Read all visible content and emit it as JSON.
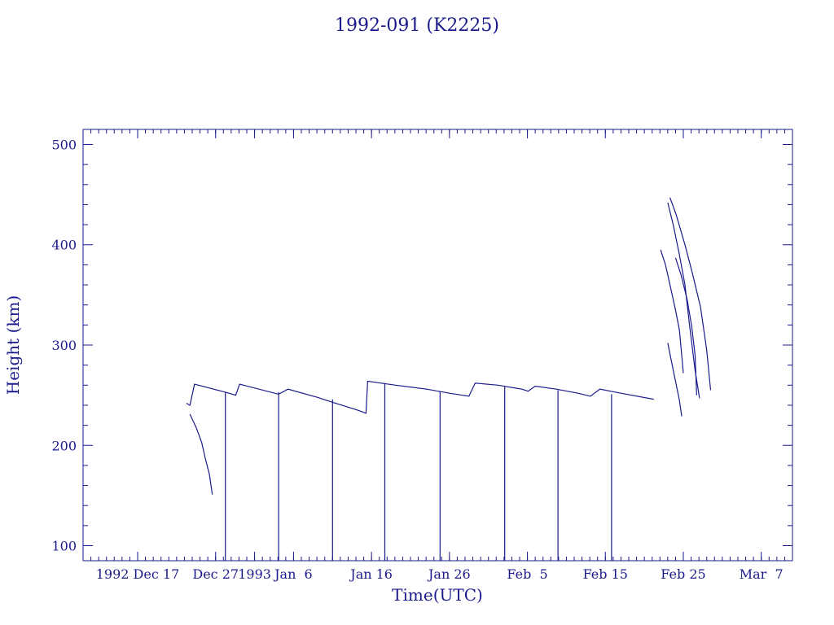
{
  "colors": {
    "ink": "#1a1a8c",
    "background": "#ffffff"
  },
  "chart_data": {
    "type": "line",
    "title": "1992-091 (K2225)",
    "xlabel": "Time(UTC)",
    "ylabel": "Height (km)",
    "grid": false,
    "legend": "none",
    "xlim": [
      "1992-12-10",
      "1993-03-11"
    ],
    "ylim": [
      85,
      515
    ],
    "x_tick_labels": [
      {
        "t": "1992-12-17",
        "label": "1992 Dec 17"
      },
      {
        "t": "1992-12-27",
        "label": "Dec 27"
      },
      {
        "t": "1993-01-01",
        "label": "1993"
      },
      {
        "t": "1993-01-06",
        "label": "Jan  6"
      },
      {
        "t": "1993-01-16",
        "label": "Jan 16"
      },
      {
        "t": "1993-01-26",
        "label": "Jan 26"
      },
      {
        "t": "1993-02-05",
        "label": "Feb  5"
      },
      {
        "t": "1993-02-15",
        "label": "Feb 15"
      },
      {
        "t": "1993-02-25",
        "label": "Feb 25"
      },
      {
        "t": "1993-03-07",
        "label": "Mar  7"
      }
    ],
    "y_ticks": [
      100,
      200,
      300,
      400,
      500
    ],
    "series": [
      {
        "points": [
          [
            "1992-12-23 06:00",
            242
          ],
          [
            "1992-12-23 17:00",
            240
          ],
          [
            "1992-12-24 07:00",
            261
          ],
          [
            "1992-12-28 06:00",
            253
          ],
          [
            "1992-12-29 14:00",
            250
          ],
          [
            "1992-12-30 02:00",
            261
          ],
          [
            "1993-01-04 02:00",
            251
          ],
          [
            "1993-01-05 07:00",
            256
          ],
          [
            "1993-01-09 00:00",
            248
          ],
          [
            "1993-01-11 00:00",
            243
          ],
          [
            "1993-01-14 06:00",
            235
          ],
          [
            "1993-01-15 07:00",
            232
          ],
          [
            "1993-01-15 12:00",
            264
          ],
          [
            "1993-01-19 02:00",
            260
          ],
          [
            "1993-01-23 02:00",
            256
          ],
          [
            "1993-01-26 00:00",
            252
          ],
          [
            "1993-01-28 12:00",
            249
          ],
          [
            "1993-01-29 07:00",
            262
          ],
          [
            "1993-02-01 05:00",
            260
          ],
          [
            "1993-02-04 07:00",
            256
          ],
          [
            "1993-02-05 02:00",
            254
          ],
          [
            "1993-02-06 00:00",
            259
          ],
          [
            "1993-02-08 17:00",
            256
          ],
          [
            "1993-02-11 12:00",
            252
          ],
          [
            "1993-02-13 02:00",
            249
          ],
          [
            "1993-02-14 07:00",
            256
          ],
          [
            "1993-02-17 00:00",
            252
          ],
          [
            "1993-02-21 05:00",
            246
          ]
        ]
      },
      {
        "points": [
          [
            "1992-12-23 17:00",
            231
          ],
          [
            "1992-12-24 12:00",
            218
          ],
          [
            "1992-12-25 05:00",
            203
          ],
          [
            "1992-12-25 17:00",
            186
          ],
          [
            "1992-12-26 05:00",
            171
          ],
          [
            "1992-12-26 14:00",
            151
          ]
        ]
      },
      {
        "points": [
          [
            "1992-12-28 06:00",
            253
          ],
          [
            "1992-12-28 06:00",
            85
          ]
        ]
      },
      {
        "points": [
          [
            "1993-01-04 02:00",
            253
          ],
          [
            "1993-01-04 02:00",
            85
          ]
        ]
      },
      {
        "points": [
          [
            "1993-01-11 00:00",
            246
          ],
          [
            "1993-01-11 00:00",
            85
          ]
        ]
      },
      {
        "points": [
          [
            "1993-01-17 17:00",
            262
          ],
          [
            "1993-01-17 17:00",
            85
          ]
        ]
      },
      {
        "points": [
          [
            "1993-01-24 19:00",
            254
          ],
          [
            "1993-01-24 19:00",
            85
          ]
        ]
      },
      {
        "points": [
          [
            "1993-02-02 02:00",
            259
          ],
          [
            "1993-02-02 02:00",
            85
          ]
        ]
      },
      {
        "points": [
          [
            "1993-02-08 22:00",
            255
          ],
          [
            "1993-02-08 22:00",
            85
          ]
        ]
      },
      {
        "points": [
          [
            "1993-02-15 19:00",
            251
          ],
          [
            "1993-02-15 19:00",
            85
          ]
        ]
      },
      {
        "points": [
          [
            "1993-02-22 02:00",
            395
          ],
          [
            "1993-02-22 17:00",
            380
          ],
          [
            "1993-02-23 07:00",
            360
          ],
          [
            "1993-02-24 00:00",
            335
          ],
          [
            "1993-02-24 12:00",
            315
          ],
          [
            "1993-02-25 00:00",
            272
          ]
        ]
      },
      {
        "points": [
          [
            "1993-02-23 00:00",
            442
          ],
          [
            "1993-02-23 17:00",
            420
          ],
          [
            "1993-02-24 12:00",
            390
          ],
          [
            "1993-02-25 05:00",
            360
          ],
          [
            "1993-02-25 19:00",
            320
          ],
          [
            "1993-02-26 12:00",
            275
          ],
          [
            "1993-02-27 02:00",
            247
          ]
        ]
      },
      {
        "points": [
          [
            "1993-02-23 07:00",
            447
          ],
          [
            "1993-02-24 02:00",
            430
          ],
          [
            "1993-02-25 05:00",
            400
          ],
          [
            "1993-02-26 05:00",
            370
          ],
          [
            "1993-02-27 05:00",
            338
          ],
          [
            "1993-02-28 00:00",
            295
          ],
          [
            "1993-02-28 12:00",
            255
          ]
        ]
      },
      {
        "points": [
          [
            "1993-02-24 00:00",
            387
          ],
          [
            "1993-02-24 17:00",
            370
          ],
          [
            "1993-02-25 12:00",
            345
          ],
          [
            "1993-02-26 02:00",
            318
          ],
          [
            "1993-02-26 12:00",
            290
          ],
          [
            "1993-02-26 17:00",
            250
          ]
        ]
      },
      {
        "points": [
          [
            "1993-02-23 00:00",
            302
          ],
          [
            "1993-02-23 17:00",
            275
          ],
          [
            "1993-02-24 12:00",
            245
          ],
          [
            "1993-02-24 19:00",
            229
          ]
        ]
      }
    ]
  }
}
